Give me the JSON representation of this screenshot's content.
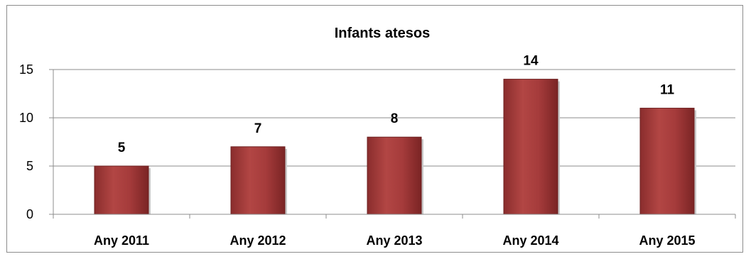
{
  "chart_data": {
    "type": "bar",
    "title": "Infants atesos",
    "categories": [
      "Any 2011",
      "Any 2012",
      "Any 2013",
      "Any 2014",
      "Any 2015"
    ],
    "values": [
      5,
      7,
      8,
      14,
      11
    ],
    "ylim": [
      0,
      15
    ],
    "yticks": [
      0,
      5,
      10,
      15
    ],
    "grid": true,
    "legend": "none",
    "colors": {
      "bar": "#a33a3a",
      "bar_edge": "#6e2020",
      "bar_highlight": "#c86a66",
      "gridline": "#8c8c8c"
    }
  }
}
